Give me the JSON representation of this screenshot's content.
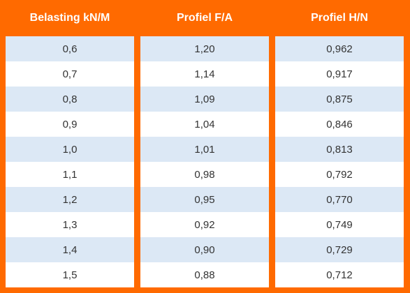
{
  "table": {
    "headers": [
      "Belasting kN/M",
      "Profiel F/A",
      "Profiel H/N"
    ],
    "columns": [
      [
        "0,6",
        "0,7",
        "0,8",
        "0,9",
        "1,0",
        "1,1",
        "1,2",
        "1,3",
        "1,4",
        "1,5"
      ],
      [
        "1,20",
        "1,14",
        "1,09",
        "1,04",
        "1,01",
        "0,98",
        "0,95",
        "0,92",
        "0,90",
        "0,88"
      ],
      [
        "0,962",
        "0,917",
        "0,875",
        "0,846",
        "0,813",
        "0,792",
        "0,770",
        "0,749",
        "0,729",
        "0,712"
      ]
    ]
  },
  "colors": {
    "accent": "#ff6a00",
    "row_alt": "#dce8f5",
    "row_plain": "#ffffff",
    "text": "#333333"
  }
}
